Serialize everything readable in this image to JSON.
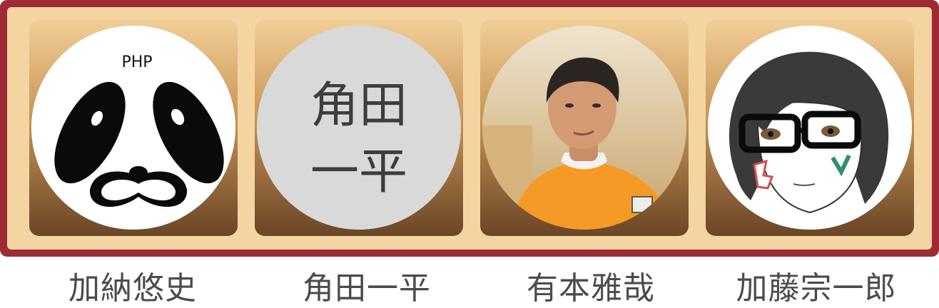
{
  "members": [
    {
      "name": "加納悠史",
      "logo_text": "PHP"
    },
    {
      "name": "角田一平",
      "avatar_text_line1": "角田",
      "avatar_text_line2": "一平"
    },
    {
      "name": "有本雅哉"
    },
    {
      "name": "加藤宗一郎"
    }
  ],
  "colors": {
    "outer_frame": "#9e2a36",
    "inner_frame": "#f4d5a2",
    "name_text": "#4b4b4b",
    "placeholder_circle": "#d9d9d9",
    "shirt_orange": "#f59a26"
  },
  "icons": [
    "panda-face-icon",
    "text-placeholder-avatar",
    "photo-avatar",
    "illustrated-avatar"
  ]
}
